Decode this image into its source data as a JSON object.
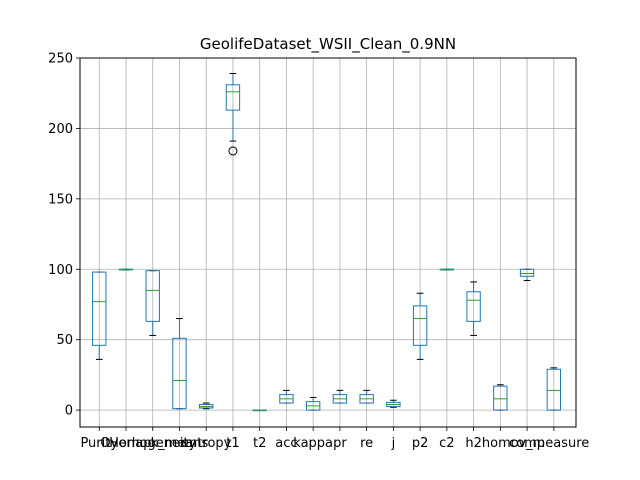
{
  "chart_data": {
    "type": "box",
    "title": "GeolifeDataset_WSII_Clean_0.9NN",
    "xlabel": "",
    "ylabel": "",
    "ylim": [
      -12,
      250
    ],
    "yticks": [
      0,
      50,
      100,
      150,
      200,
      250
    ],
    "grid": true,
    "colors": {
      "box": "#1f77b4",
      "median": "#2ca02c",
      "grid": "#b0b0b0",
      "flier": "#000000"
    },
    "categories": [
      "Purity",
      "Overlap",
      "Homogeneity",
      "k_means",
      "entropy",
      "t1",
      "t2",
      "acc",
      "kappa",
      "pr",
      "re",
      "j",
      "p2",
      "c2",
      "h2",
      "homo",
      "comp",
      "v_measure"
    ],
    "boxes": [
      {
        "label": "Purity",
        "whislo": 36,
        "q1": 46,
        "med": 77,
        "q3": 98,
        "whishi": 98,
        "fliers": []
      },
      {
        "label": "Overlap",
        "whislo": 99.5,
        "q1": 100,
        "med": 100,
        "q3": 100,
        "whishi": 100,
        "fliers": []
      },
      {
        "label": "Homogeneity",
        "whislo": 53,
        "q1": 63,
        "med": 85,
        "q3": 99,
        "whishi": 99,
        "fliers": []
      },
      {
        "label": "k_means",
        "whislo": 1,
        "q1": 1,
        "med": 21,
        "q3": 51,
        "whishi": 65,
        "fliers": []
      },
      {
        "label": "entropy",
        "whislo": 1,
        "q1": 1.5,
        "med": 2.5,
        "q3": 4,
        "whishi": 5,
        "fliers": []
      },
      {
        "label": "t1",
        "whislo": 191,
        "q1": 213,
        "med": 226,
        "q3": 231,
        "whishi": 239,
        "fliers": [
          184
        ]
      },
      {
        "label": "t2",
        "whislo": 0,
        "q1": 0,
        "med": 0,
        "q3": 0,
        "whishi": 0,
        "fliers": []
      },
      {
        "label": "acc",
        "whislo": 5,
        "q1": 5,
        "med": 8,
        "q3": 11,
        "whishi": 14,
        "fliers": []
      },
      {
        "label": "kappa",
        "whislo": 0,
        "q1": 0,
        "med": 3,
        "q3": 6,
        "whishi": 9,
        "fliers": []
      },
      {
        "label": "pr",
        "whislo": 5,
        "q1": 5,
        "med": 8,
        "q3": 11,
        "whishi": 14,
        "fliers": []
      },
      {
        "label": "re",
        "whislo": 5,
        "q1": 5,
        "med": 8,
        "q3": 11,
        "whishi": 14,
        "fliers": []
      },
      {
        "label": "j",
        "whislo": 2,
        "q1": 2.5,
        "med": 4,
        "q3": 5.5,
        "whishi": 7,
        "fliers": []
      },
      {
        "label": "p2",
        "whislo": 36,
        "q1": 46,
        "med": 65,
        "q3": 74,
        "whishi": 83,
        "fliers": []
      },
      {
        "label": "c2",
        "whislo": 99.5,
        "q1": 100,
        "med": 100,
        "q3": 100,
        "whishi": 100,
        "fliers": []
      },
      {
        "label": "h2",
        "whislo": 53,
        "q1": 63,
        "med": 78,
        "q3": 84,
        "whishi": 91,
        "fliers": []
      },
      {
        "label": "homo",
        "whislo": 0,
        "q1": 0,
        "med": 8,
        "q3": 17,
        "whishi": 18,
        "fliers": []
      },
      {
        "label": "comp",
        "whislo": 92,
        "q1": 95,
        "med": 97,
        "q3": 100,
        "whishi": 100,
        "fliers": []
      },
      {
        "label": "v_measure",
        "whislo": 0,
        "q1": 0,
        "med": 14,
        "q3": 29,
        "whishi": 30,
        "fliers": []
      }
    ],
    "tick_labels": [
      "Purity",
      "Overlap",
      "Homogeneity",
      "k_means",
      "entropy",
      "t1",
      "t2",
      "acc",
      "kappa",
      "pr",
      "re",
      "j",
      "p2",
      "c2",
      "h2",
      "homo",
      "comp",
      "v_measure"
    ]
  }
}
